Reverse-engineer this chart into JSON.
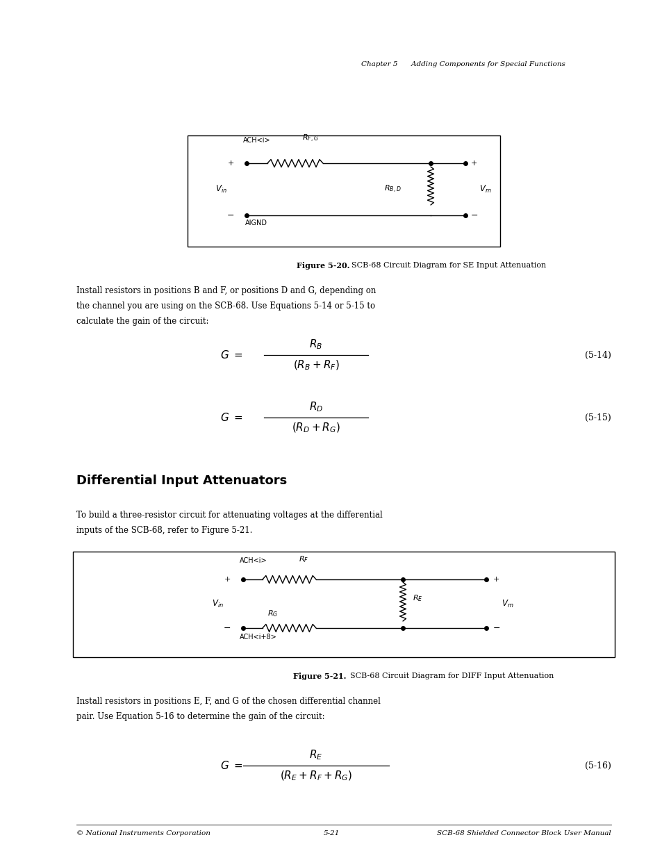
{
  "bg_color": "#ffffff",
  "page_width": 9.54,
  "page_height": 12.35,
  "header_text": "Chapter 5      Adding Components for Special Functions",
  "footer_left": "© National Instruments Corporation",
  "footer_mid": "5-21",
  "footer_right": "SCB-68 Shielded Connector Block User Manual",
  "eq514_label": "(5-14)",
  "eq515_label": "(5-15)",
  "eq516_label": "(5-16)",
  "section_title": "Differential Input Attenuators",
  "para1_line1": "Install resistors in positions B and F, or positions D and G, depending on",
  "para1_line2": "the channel you are using on the SCB-68. Use Equations 5-14 or 5-15 to",
  "para1_line3": "calculate the gain of the circuit:",
  "para2_line1": "To build a three-resistor circuit for attenuating voltages at the differential",
  "para2_line2": "inputs of the SCB-68, refer to Figure 5-21.",
  "para3_line1": "Install resistors in positions E, F, and G of the chosen differential channel",
  "para3_line2": "pair. Use Equation 5-16 to determine the gain of the circuit:",
  "fig1_bold": "Figure 5-20.",
  "fig1_rest": "  SCB-68 Circuit Diagram for SE Input Attenuation",
  "fig2_bold": "Figure 5-21.",
  "fig2_rest": "  SCB-68 Circuit Diagram for DIFF Input Attenuation"
}
